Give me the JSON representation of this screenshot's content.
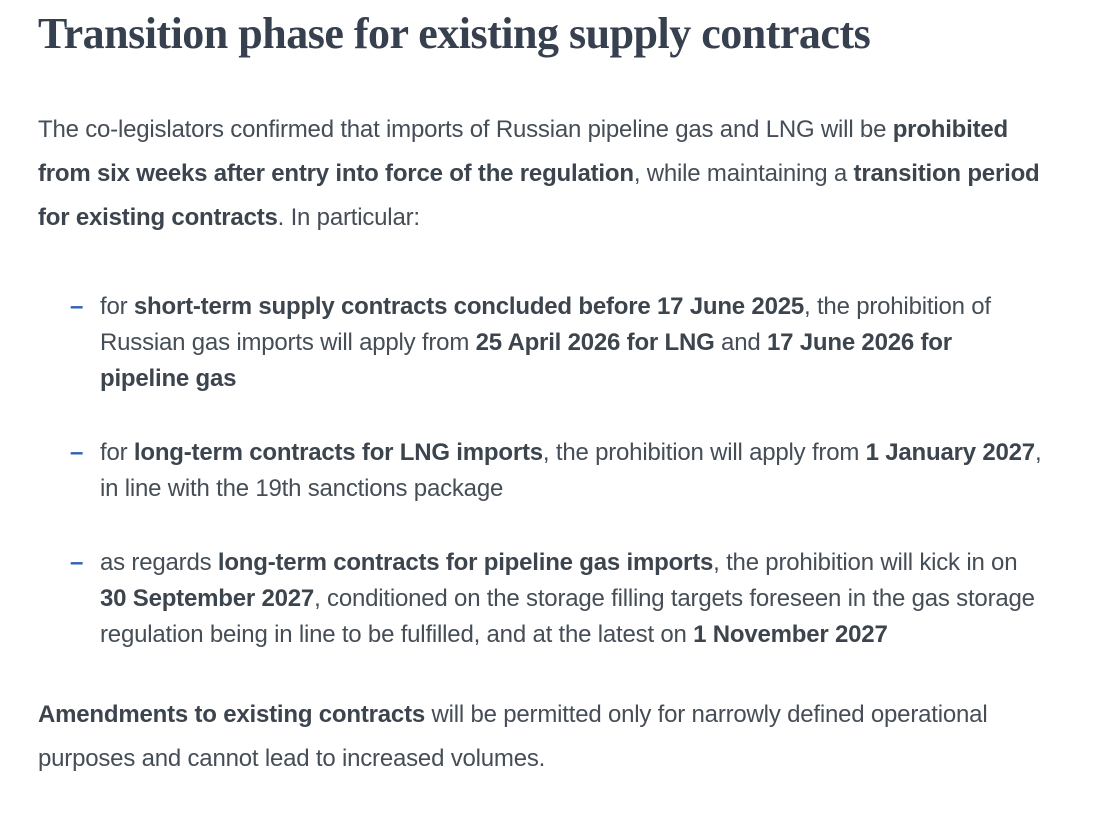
{
  "page": {
    "background_color": "#ffffff",
    "accent_blue": "#2e62b4",
    "heading_color": "#36404e",
    "body_color": "#454d57",
    "bullet_marker": "–"
  },
  "article": {
    "title": "Transition phase for existing supply contracts",
    "intro": {
      "runs": [
        {
          "t": "The co-legislators confirmed that imports of Russian pipeline gas and LNG will be ",
          "b": false
        },
        {
          "t": "prohibited from six weeks after entry into force of the regulation",
          "b": true
        },
        {
          "t": ", while maintaining a ",
          "b": false
        },
        {
          "t": "transition period for existing contracts",
          "b": true
        },
        {
          "t": ". In particular:",
          "b": false
        }
      ]
    },
    "bullets": [
      {
        "runs": [
          {
            "t": "for ",
            "b": false
          },
          {
            "t": "short-term supply contracts concluded before 17 June 2025",
            "b": true
          },
          {
            "t": ", the prohibition of Russian gas imports will apply from ",
            "b": false
          },
          {
            "t": "25 April 2026 for LNG",
            "b": true
          },
          {
            "t": " and ",
            "b": false
          },
          {
            "t": "17 June 2026 for pipeline gas",
            "b": true
          }
        ]
      },
      {
        "runs": [
          {
            "t": "for ",
            "b": false
          },
          {
            "t": "long-term contracts for LNG imports",
            "b": true
          },
          {
            "t": ", the prohibition will apply from ",
            "b": false
          },
          {
            "t": "1 January 2027",
            "b": true
          },
          {
            "t": ", in line with the 19th sanctions package",
            "b": false
          }
        ]
      },
      {
        "runs": [
          {
            "t": "as regards ",
            "b": false
          },
          {
            "t": "long-term contracts for pipeline gas imports",
            "b": true
          },
          {
            "t": ", the prohibition will kick in on ",
            "b": false
          },
          {
            "t": "30 September 2027",
            "b": true
          },
          {
            "t": ", conditioned on the storage filling targets foreseen in the gas storage regulation being in line to be fulfilled, and at the latest on ",
            "b": false
          },
          {
            "t": "1 November 2027",
            "b": true
          }
        ]
      }
    ],
    "closing": {
      "runs": [
        {
          "t": "Amendments to existing contracts",
          "b": true
        },
        {
          "t": " will be permitted only for narrowly defined operational purposes and cannot lead to increased volumes.",
          "b": false
        }
      ]
    }
  }
}
